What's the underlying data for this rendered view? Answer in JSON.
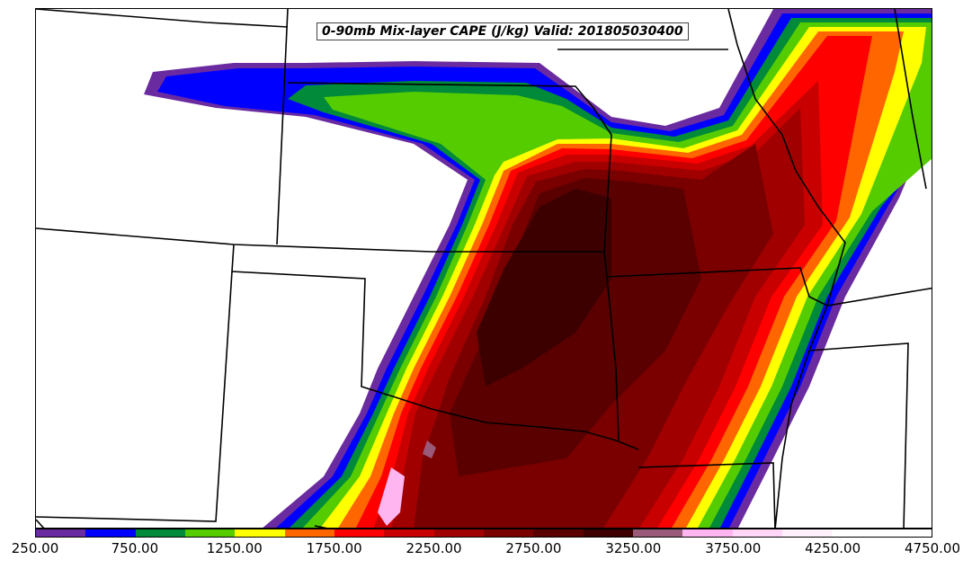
{
  "title": "0-90mb Mix-layer CAPE (J/kg) Valid: 201805030400",
  "colorbar": {
    "colors": [
      "#6a2aa0",
      "#0000ff",
      "#008a3a",
      "#55cc00",
      "#ffff00",
      "#ff6600",
      "#ff0000",
      "#c80000",
      "#a00000",
      "#7a0000",
      "#5a0000",
      "#3c0000",
      "#9a5a7a",
      "#ffb6f0",
      "#ffd6f8",
      "#fff0fc",
      "#ffffff",
      "#ffffff"
    ],
    "tick_labels": [
      "250.00",
      "750.00",
      "1250.00",
      "1750.00",
      "2250.00",
      "2750.00",
      "3250.00",
      "3750.00",
      "4250.00",
      "4750.00"
    ],
    "min": 250,
    "max": 4750
  }
}
